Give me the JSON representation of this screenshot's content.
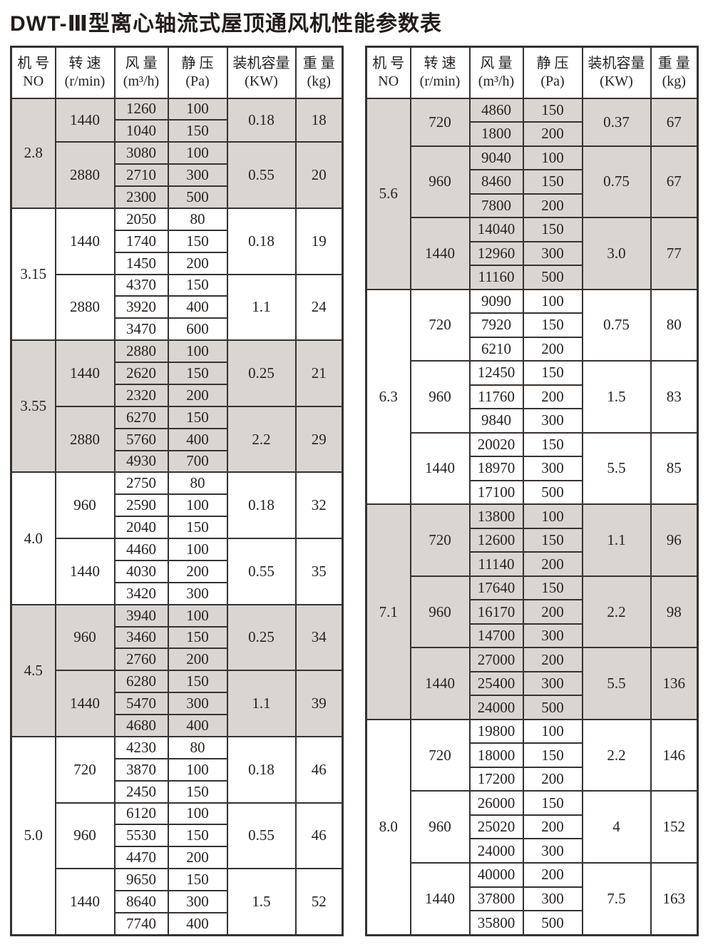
{
  "title": "DWT-Ⅲ型离心轴流式屋顶通风机性能参数表",
  "colors": {
    "shaded_row_bg": "#d9d6d2",
    "border": "#363230",
    "text": "#262220"
  },
  "columns": [
    {
      "line1": "机 号",
      "line2": "NO"
    },
    {
      "line1": "转 速",
      "line2": "(r/min)"
    },
    {
      "line1": "风 量",
      "line2": "(m³/h)"
    },
    {
      "line1": "静 压",
      "line2": "(Pa)"
    },
    {
      "line1": "装机容量",
      "line2": "(KW)"
    },
    {
      "line1": "重 量",
      "line2": "(kg)"
    }
  ],
  "tables": [
    {
      "name": "left",
      "sections": [
        {
          "no": "2.8",
          "shaded": true,
          "groups": [
            {
              "speed": "1440",
              "rows": [
                [
                  "1260",
                  "100"
                ],
                [
                  "1040",
                  "150"
                ]
              ],
              "power": "0.18",
              "weight": "18"
            },
            {
              "speed": "2880",
              "rows": [
                [
                  "3080",
                  "100"
                ],
                [
                  "2710",
                  "300"
                ],
                [
                  "2300",
                  "500"
                ]
              ],
              "power": "0.55",
              "weight": "20"
            }
          ]
        },
        {
          "no": "3.15",
          "shaded": false,
          "groups": [
            {
              "speed": "1440",
              "rows": [
                [
                  "2050",
                  "80"
                ],
                [
                  "1740",
                  "150"
                ],
                [
                  "1450",
                  "200"
                ]
              ],
              "power": "0.18",
              "weight": "19"
            },
            {
              "speed": "2880",
              "rows": [
                [
                  "4370",
                  "150"
                ],
                [
                  "3920",
                  "400"
                ],
                [
                  "3470",
                  "600"
                ]
              ],
              "power": "1.1",
              "weight": "24"
            }
          ]
        },
        {
          "no": "3.55",
          "shaded": true,
          "groups": [
            {
              "speed": "1440",
              "rows": [
                [
                  "2880",
                  "100"
                ],
                [
                  "2620",
                  "150"
                ],
                [
                  "2320",
                  "200"
                ]
              ],
              "power": "0.25",
              "weight": "21"
            },
            {
              "speed": "2880",
              "rows": [
                [
                  "6270",
                  "150"
                ],
                [
                  "5760",
                  "400"
                ],
                [
                  "4930",
                  "700"
                ]
              ],
              "power": "2.2",
              "weight": "29"
            }
          ]
        },
        {
          "no": "4.0",
          "shaded": false,
          "groups": [
            {
              "speed": "960",
              "rows": [
                [
                  "2750",
                  "80"
                ],
                [
                  "2590",
                  "100"
                ],
                [
                  "2040",
                  "150"
                ]
              ],
              "power": "0.18",
              "weight": "32"
            },
            {
              "speed": "1440",
              "rows": [
                [
                  "4460",
                  "100"
                ],
                [
                  "4030",
                  "200"
                ],
                [
                  "3420",
                  "300"
                ]
              ],
              "power": "0.55",
              "weight": "35"
            }
          ]
        },
        {
          "no": "4.5",
          "shaded": true,
          "groups": [
            {
              "speed": "960",
              "rows": [
                [
                  "3940",
                  "100"
                ],
                [
                  "3460",
                  "150"
                ],
                [
                  "2760",
                  "200"
                ]
              ],
              "power": "0.25",
              "weight": "34"
            },
            {
              "speed": "1440",
              "rows": [
                [
                  "6280",
                  "150"
                ],
                [
                  "5470",
                  "300"
                ],
                [
                  "4680",
                  "400"
                ]
              ],
              "power": "1.1",
              "weight": "39"
            }
          ]
        },
        {
          "no": "5.0",
          "shaded": false,
          "groups": [
            {
              "speed": "720",
              "rows": [
                [
                  "4230",
                  "80"
                ],
                [
                  "3870",
                  "100"
                ],
                [
                  "2450",
                  "150"
                ]
              ],
              "power": "0.18",
              "weight": "46"
            },
            {
              "speed": "960",
              "rows": [
                [
                  "6120",
                  "100"
                ],
                [
                  "5530",
                  "150"
                ],
                [
                  "4470",
                  "200"
                ]
              ],
              "power": "0.55",
              "weight": "46"
            },
            {
              "speed": "1440",
              "rows": [
                [
                  "9650",
                  "150"
                ],
                [
                  "8640",
                  "300"
                ],
                [
                  "7740",
                  "400"
                ]
              ],
              "power": "1.5",
              "weight": "52"
            }
          ]
        }
      ]
    },
    {
      "name": "right",
      "sections": [
        {
          "no": "5.6",
          "shaded": true,
          "groups": [
            {
              "speed": "720",
              "rows": [
                [
                  "4860",
                  "150"
                ],
                [
                  "1800",
                  "200"
                ]
              ],
              "power": "0.37",
              "weight": "67"
            },
            {
              "speed": "960",
              "rows": [
                [
                  "9040",
                  "100"
                ],
                [
                  "8460",
                  "150"
                ],
                [
                  "7800",
                  "200"
                ]
              ],
              "power": "0.75",
              "weight": "67"
            },
            {
              "speed": "1440",
              "rows": [
                [
                  "14040",
                  "150"
                ],
                [
                  "12960",
                  "300"
                ],
                [
                  "11160",
                  "500"
                ]
              ],
              "power": "3.0",
              "weight": "77"
            }
          ]
        },
        {
          "no": "6.3",
          "shaded": false,
          "groups": [
            {
              "speed": "720",
              "rows": [
                [
                  "9090",
                  "100"
                ],
                [
                  "7920",
                  "150"
                ],
                [
                  "6210",
                  "200"
                ]
              ],
              "power": "0.75",
              "weight": "80"
            },
            {
              "speed": "960",
              "rows": [
                [
                  "12450",
                  "150"
                ],
                [
                  "11760",
                  "200"
                ],
                [
                  "9840",
                  "300"
                ]
              ],
              "power": "1.5",
              "weight": "83"
            },
            {
              "speed": "1440",
              "rows": [
                [
                  "20020",
                  "150"
                ],
                [
                  "18970",
                  "300"
                ],
                [
                  "17100",
                  "500"
                ]
              ],
              "power": "5.5",
              "weight": "85"
            }
          ]
        },
        {
          "no": "7.1",
          "shaded": true,
          "groups": [
            {
              "speed": "720",
              "rows": [
                [
                  "13800",
                  "100"
                ],
                [
                  "12600",
                  "150"
                ],
                [
                  "11140",
                  "200"
                ]
              ],
              "power": "1.1",
              "weight": "96"
            },
            {
              "speed": "960",
              "rows": [
                [
                  "17640",
                  "150"
                ],
                [
                  "16170",
                  "200"
                ],
                [
                  "14700",
                  "300"
                ]
              ],
              "power": "2.2",
              "weight": "98"
            },
            {
              "speed": "1440",
              "rows": [
                [
                  "27000",
                  "200"
                ],
                [
                  "25400",
                  "300"
                ],
                [
                  "24000",
                  "500"
                ]
              ],
              "power": "5.5",
              "weight": "136"
            }
          ]
        },
        {
          "no": "8.0",
          "shaded": false,
          "groups": [
            {
              "speed": "720",
              "rows": [
                [
                  "19800",
                  "100"
                ],
                [
                  "18000",
                  "150"
                ],
                [
                  "17200",
                  "200"
                ]
              ],
              "power": "2.2",
              "weight": "146"
            },
            {
              "speed": "960",
              "rows": [
                [
                  "26000",
                  "150"
                ],
                [
                  "25020",
                  "200"
                ],
                [
                  "24000",
                  "300"
                ]
              ],
              "power": "4",
              "weight": "152"
            },
            {
              "speed": "1440",
              "rows": [
                [
                  "40000",
                  "200"
                ],
                [
                  "37800",
                  "300"
                ],
                [
                  "35800",
                  "500"
                ]
              ],
              "power": "7.5",
              "weight": "163"
            }
          ]
        }
      ]
    }
  ]
}
